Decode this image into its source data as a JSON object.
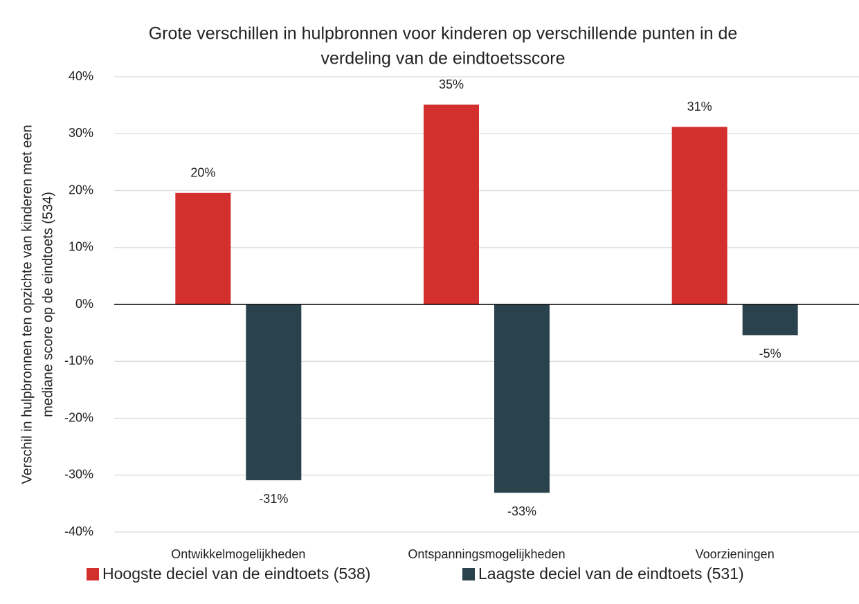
{
  "chart_data": {
    "type": "bar",
    "title": [
      "Grote verschillen in hulpbronnen voor kinderen op verschillende punten in de",
      "verdeling van de eindtoetsscore"
    ],
    "ylabel": [
      "Verschil in hulpbronnen ten opzichte van kinderen met een",
      "mediane score op de eindtoets (534)"
    ],
    "categories": [
      "Ontwikkelmogelijkheden",
      "Ontspanningsmogelijkheden",
      "Voorzieningen"
    ],
    "series": [
      {
        "name": "Hoogste deciel van de eindtoets (538)",
        "color": "#d22f2d",
        "values": [
          19.6,
          35.1,
          31.2
        ],
        "value_labels": [
          "20%",
          "35%",
          "31%"
        ]
      },
      {
        "name": "Laagste deciel van de eindtoets (531)",
        "color": "#29424c",
        "values": [
          -30.9,
          -33.1,
          -5.4
        ],
        "value_labels": [
          "-31%",
          "-33%",
          "-5%"
        ]
      }
    ],
    "ylim": [
      -40,
      40
    ],
    "yticks": [
      {
        "value": -40,
        "label": "-40%"
      },
      {
        "value": -30,
        "label": "-30%"
      },
      {
        "value": -20,
        "label": "-20%"
      },
      {
        "value": -10,
        "label": "-10%"
      },
      {
        "value": 0,
        "label": "0%"
      },
      {
        "value": 10,
        "label": "10%"
      },
      {
        "value": 20,
        "label": "20%"
      },
      {
        "value": 30,
        "label": "30%"
      },
      {
        "value": 40,
        "label": "40%"
      }
    ],
    "grid": true,
    "legend": "bottom"
  }
}
